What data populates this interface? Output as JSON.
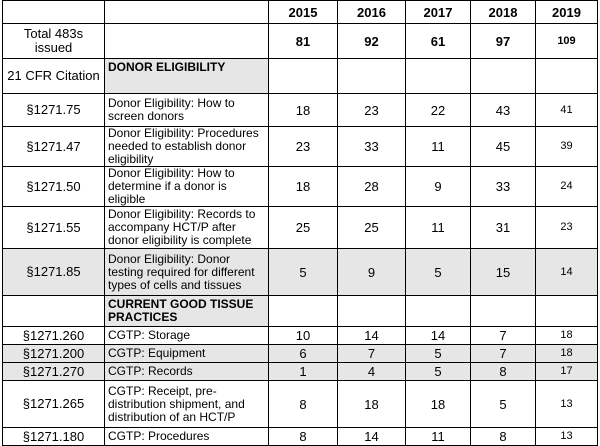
{
  "header": {
    "years": [
      "2015",
      "2016",
      "2017",
      "2018",
      "2019"
    ]
  },
  "rows": [
    {
      "label": "Total 483s issued",
      "values": [
        81,
        92,
        61,
        97,
        109
      ]
    },
    {
      "label": "21 CFR Citation",
      "section": "DONOR ELIGIBILITY"
    },
    {
      "label": "§1271.75",
      "description": "Donor Eligibility: How to screen donors",
      "values": [
        18,
        23,
        22,
        43,
        41
      ]
    },
    {
      "label": "§1271.47",
      "description": "Donor Eligibility: Procedures needed to establish donor eligibility",
      "values": [
        23,
        33,
        11,
        45,
        39
      ]
    },
    {
      "label": "§1271.50",
      "description": "Donor Eligibility: How to determine if a donor is eligible",
      "values": [
        18,
        28,
        9,
        33,
        24
      ]
    },
    {
      "label": "§1271.55",
      "description": "Donor Eligibility: Records to accompany HCT/P after donor eligibility is complete",
      "values": [
        25,
        25,
        11,
        31,
        23
      ]
    },
    {
      "label": "§1271.85",
      "description": "Donor Eligibility: Donor testing required for different types of cells and tissues",
      "values": [
        5,
        9,
        5,
        15,
        14
      ]
    },
    {
      "section": "CURRENT GOOD TISSUE PRACTICES"
    },
    {
      "label": "§1271.260",
      "description": "CGTP: Storage",
      "values": [
        10,
        14,
        14,
        7,
        18
      ]
    },
    {
      "label": "§1271.200",
      "description": "CGTP: Equipment",
      "values": [
        6,
        7,
        5,
        7,
        18
      ]
    },
    {
      "label": "§1271.270",
      "description": "CGTP: Records",
      "values": [
        1,
        4,
        5,
        8,
        17
      ]
    },
    {
      "label": "§1271.265",
      "description": "CGTP: Receipt, pre-distribution shipment, and distribution of an HCT/P",
      "values": [
        8,
        18,
        18,
        5,
        13
      ]
    },
    {
      "label": "§1271.180",
      "description": "CGTP: Procedures",
      "values": [
        8,
        14,
        11,
        8,
        13
      ]
    }
  ]
}
